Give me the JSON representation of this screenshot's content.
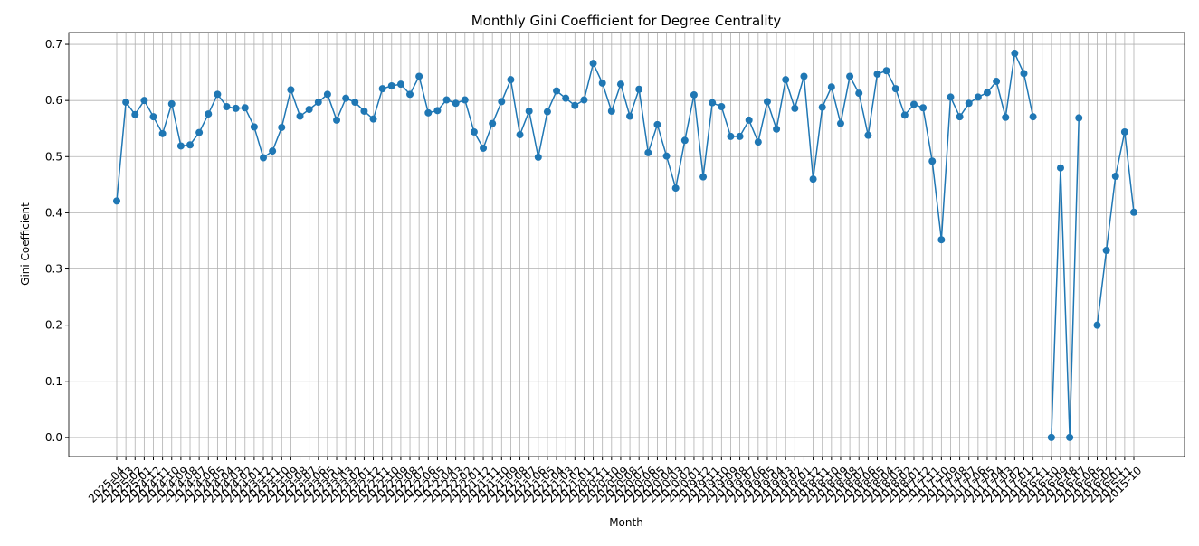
{
  "chart_data": {
    "type": "line",
    "title": "Monthly Gini Coefficient for Degree Centrality",
    "x_label": "Month",
    "y_label": "Gini Coefficient",
    "color": "#1f77b4",
    "grid": true,
    "categories": [
      "2025-04",
      "2025-03",
      "2025-02",
      "2025-01",
      "2024-12",
      "2024-11",
      "2024-10",
      "2024-09",
      "2024-08",
      "2024-07",
      "2024-06",
      "2024-05",
      "2024-04",
      "2024-03",
      "2024-02",
      "2024-01",
      "2023-12",
      "2023-11",
      "2023-10",
      "2023-09",
      "2023-08",
      "2023-07",
      "2023-06",
      "2023-05",
      "2023-04",
      "2023-03",
      "2023-02",
      "2023-01",
      "2022-12",
      "2022-11",
      "2022-10",
      "2022-09",
      "2022-08",
      "2022-07",
      "2022-06",
      "2022-05",
      "2022-04",
      "2022-03",
      "2022-02",
      "2022-01",
      "2021-12",
      "2021-11",
      "2021-10",
      "2021-09",
      "2021-08",
      "2021-07",
      "2021-06",
      "2021-05",
      "2021-04",
      "2021-03",
      "2021-02",
      "2021-01",
      "2020-12",
      "2020-11",
      "2020-10",
      "2020-09",
      "2020-08",
      "2020-07",
      "2020-06",
      "2020-05",
      "2020-04",
      "2020-03",
      "2020-02",
      "2020-01",
      "2019-12",
      "2019-11",
      "2019-10",
      "2019-09",
      "2019-08",
      "2019-07",
      "2019-06",
      "2019-05",
      "2019-04",
      "2019-03",
      "2019-02",
      "2019-01",
      "2018-12",
      "2018-11",
      "2018-10",
      "2018-09",
      "2018-08",
      "2018-07",
      "2018-06",
      "2018-05",
      "2018-04",
      "2018-03",
      "2018-02",
      "2018-01",
      "2017-12",
      "2017-11",
      "2017-10",
      "2017-09",
      "2017-08",
      "2017-07",
      "2017-06",
      "2017-05",
      "2017-04",
      "2017-03",
      "2017-02",
      "2017-01",
      "2016-12",
      "2016-11",
      "2016-10",
      "2016-09",
      "2016-08",
      "2016-07",
      "2016-06",
      "2016-05",
      "2016-02",
      "2016-01",
      "2015-11",
      "2015-10"
    ],
    "values": [
      0.421,
      0.597,
      0.575,
      0.6,
      0.571,
      0.541,
      0.594,
      0.519,
      0.521,
      0.543,
      0.576,
      0.611,
      0.589,
      0.586,
      0.587,
      0.553,
      0.498,
      0.51,
      0.552,
      0.619,
      0.572,
      0.584,
      0.597,
      0.611,
      0.565,
      0.604,
      0.597,
      0.581,
      0.567,
      0.621,
      0.626,
      0.629,
      0.611,
      0.643,
      0.578,
      0.582,
      0.601,
      0.595,
      0.601,
      0.544,
      0.515,
      0.559,
      0.598,
      0.637,
      0.539,
      0.581,
      0.499,
      0.58,
      0.617,
      0.604,
      0.591,
      0.601,
      0.666,
      0.631,
      0.581,
      0.629,
      0.572,
      0.62,
      0.507,
      0.557,
      0.501,
      0.444,
      0.529,
      0.61,
      0.464,
      0.596,
      0.589,
      0.536,
      0.536,
      0.565,
      0.526,
      0.598,
      0.549,
      0.637,
      0.586,
      0.643,
      0.46,
      0.588,
      0.624,
      0.559,
      0.643,
      0.613,
      0.538,
      0.647,
      0.653,
      0.621,
      0.574,
      0.593,
      0.587,
      0.492,
      0.352,
      0.606,
      0.571,
      0.595,
      0.606,
      0.614,
      0.634,
      0.57,
      0.684,
      0.648,
      0.571,
      null,
      0.0,
      0.48,
      0.0,
      0.569,
      null,
      0.2,
      0.333,
      0.465,
      0.544,
      0.401
    ],
    "ylim": [
      -0.034,
      0.721
    ],
    "yticks": [
      {
        "value": 0,
        "label": "0.0"
      },
      0.1,
      0.2,
      0.3,
      0.4,
      0.5,
      0.6,
      0.7
    ]
  }
}
